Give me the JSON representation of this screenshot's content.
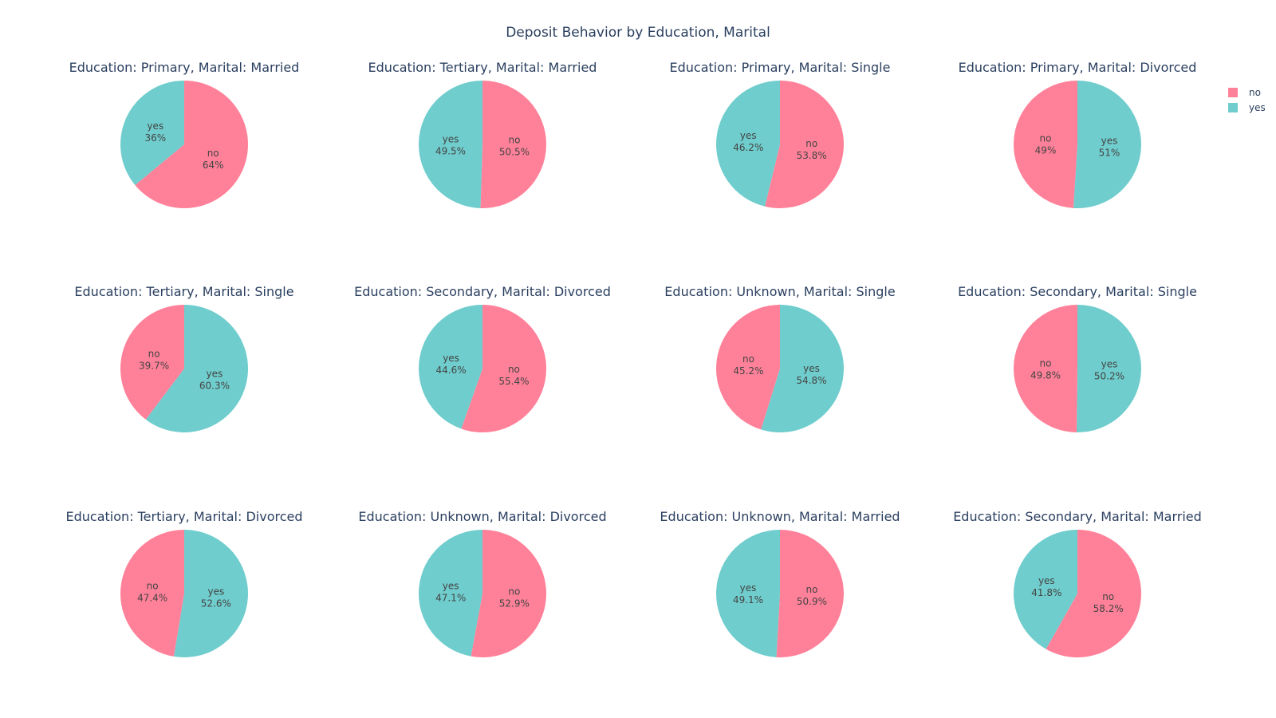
{
  "chart_data": {
    "type": "pie",
    "title": "Deposit Behavior by Education, Marital",
    "labels": [
      "no",
      "yes"
    ],
    "colors": {
      "no": "#ff8199",
      "yes": "#70cdcd"
    },
    "legend": {
      "position": "top-right",
      "entries": [
        "no",
        "yes"
      ]
    },
    "panels": [
      {
        "title": "Education: Primary, Marital: Married",
        "values": {
          "no": 64,
          "yes": 36
        },
        "text": {
          "no": "64%",
          "yes": "36%"
        }
      },
      {
        "title": "Education: Tertiary, Marital: Married",
        "values": {
          "no": 50.5,
          "yes": 49.5
        },
        "text": {
          "no": "50.5%",
          "yes": "49.5%"
        }
      },
      {
        "title": "Education: Primary, Marital: Single",
        "values": {
          "no": 53.8,
          "yes": 46.2
        },
        "text": {
          "no": "53.8%",
          "yes": "46.2%"
        }
      },
      {
        "title": "Education: Primary, Marital: Divorced",
        "values": {
          "no": 49,
          "yes": 51
        },
        "text": {
          "no": "49%",
          "yes": "51%"
        }
      },
      {
        "title": "Education: Tertiary, Marital: Single",
        "values": {
          "no": 39.7,
          "yes": 60.3
        },
        "text": {
          "no": "39.7%",
          "yes": "60.3%"
        }
      },
      {
        "title": "Education: Secondary, Marital: Divorced",
        "values": {
          "no": 55.4,
          "yes": 44.6
        },
        "text": {
          "no": "55.4%",
          "yes": "44.6%"
        }
      },
      {
        "title": "Education: Unknown, Marital: Single",
        "values": {
          "no": 45.2,
          "yes": 54.8
        },
        "text": {
          "no": "45.2%",
          "yes": "54.8%"
        }
      },
      {
        "title": "Education: Secondary, Marital: Single",
        "values": {
          "no": 49.8,
          "yes": 50.2
        },
        "text": {
          "no": "49.8%",
          "yes": "50.2%"
        }
      },
      {
        "title": "Education: Tertiary, Marital: Divorced",
        "values": {
          "no": 47.4,
          "yes": 52.6
        },
        "text": {
          "no": "47.4%",
          "yes": "52.6%"
        }
      },
      {
        "title": "Education: Unknown, Marital: Divorced",
        "values": {
          "no": 52.9,
          "yes": 47.1
        },
        "text": {
          "no": "52.9%",
          "yes": "47.1%"
        }
      },
      {
        "title": "Education: Unknown, Marital: Married",
        "values": {
          "no": 50.9,
          "yes": 49.1
        },
        "text": {
          "no": "50.9%",
          "yes": "49.1%"
        }
      },
      {
        "title": "Education: Secondary, Marital: Married",
        "values": {
          "no": 58.2,
          "yes": 41.8
        },
        "text": {
          "no": "58.2%",
          "yes": "41.8%"
        }
      }
    ]
  }
}
